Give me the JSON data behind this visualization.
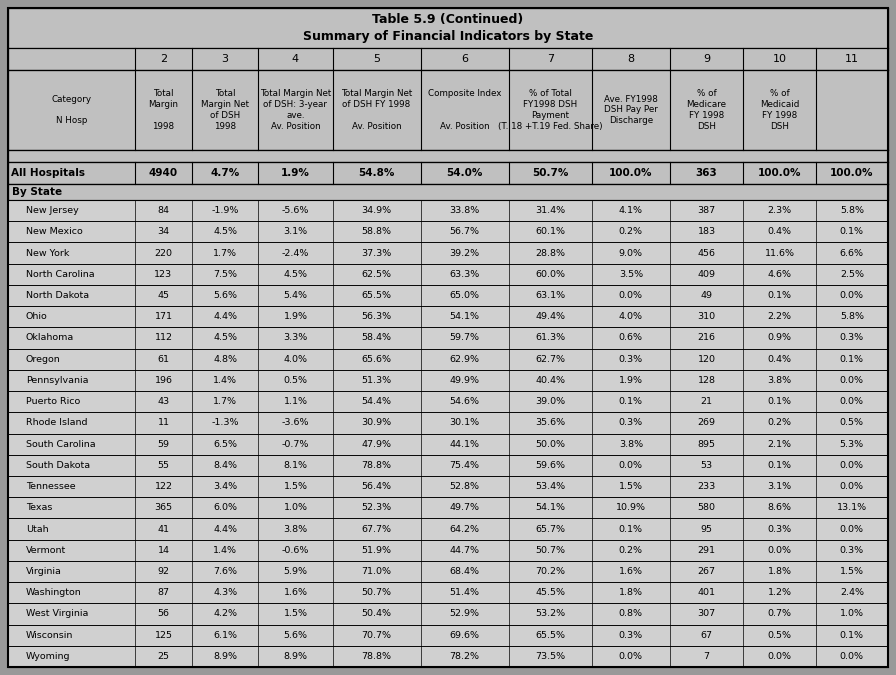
{
  "title_line1": "Table 5.9 (Continued)",
  "title_line2": "Summary of Financial Indicators by State",
  "bg_color": "#999999",
  "header_bg": "#c0c0c0",
  "cell_bg": "#d0d0d0",
  "summary_row": {
    "label": "All Hospitals",
    "values": [
      "4940",
      "4.7%",
      "1.9%",
      "54.8%",
      "54.0%",
      "50.7%",
      "100.0%",
      "363",
      "100.0%",
      "100.0%"
    ]
  },
  "state_rows": [
    {
      "state": "New Jersey",
      "values": [
        "84",
        "-1.9%",
        "-5.6%",
        "34.9%",
        "33.8%",
        "31.4%",
        "4.1%",
        "387",
        "2.3%",
        "5.8%"
      ]
    },
    {
      "state": "New Mexico",
      "values": [
        "34",
        "4.5%",
        "3.1%",
        "58.8%",
        "56.7%",
        "60.1%",
        "0.2%",
        "183",
        "0.4%",
        "0.1%"
      ]
    },
    {
      "state": "New York",
      "values": [
        "220",
        "1.7%",
        "-2.4%",
        "37.3%",
        "39.2%",
        "28.8%",
        "9.0%",
        "456",
        "11.6%",
        "6.6%"
      ]
    },
    {
      "state": "North Carolina",
      "values": [
        "123",
        "7.5%",
        "4.5%",
        "62.5%",
        "63.3%",
        "60.0%",
        "3.5%",
        "409",
        "4.6%",
        "2.5%"
      ]
    },
    {
      "state": "North Dakota",
      "values": [
        "45",
        "5.6%",
        "5.4%",
        "65.5%",
        "65.0%",
        "63.1%",
        "0.0%",
        "49",
        "0.1%",
        "0.0%"
      ]
    },
    {
      "state": "Ohio",
      "values": [
        "171",
        "4.4%",
        "1.9%",
        "56.3%",
        "54.1%",
        "49.4%",
        "4.0%",
        "310",
        "2.2%",
        "5.8%"
      ]
    },
    {
      "state": "Oklahoma",
      "values": [
        "112",
        "4.5%",
        "3.3%",
        "58.4%",
        "59.7%",
        "61.3%",
        "0.6%",
        "216",
        "0.9%",
        "0.3%"
      ]
    },
    {
      "state": "Oregon",
      "values": [
        "61",
        "4.8%",
        "4.0%",
        "65.6%",
        "62.9%",
        "62.7%",
        "0.3%",
        "120",
        "0.4%",
        "0.1%"
      ]
    },
    {
      "state": "Pennsylvania",
      "values": [
        "196",
        "1.4%",
        "0.5%",
        "51.3%",
        "49.9%",
        "40.4%",
        "1.9%",
        "128",
        "3.8%",
        "0.0%"
      ]
    },
    {
      "state": "Puerto Rico",
      "values": [
        "43",
        "1.7%",
        "1.1%",
        "54.4%",
        "54.6%",
        "39.0%",
        "0.1%",
        "21",
        "0.1%",
        "0.0%"
      ]
    },
    {
      "state": "Rhode Island",
      "values": [
        "11",
        "-1.3%",
        "-3.6%",
        "30.9%",
        "30.1%",
        "35.6%",
        "0.3%",
        "269",
        "0.2%",
        "0.5%"
      ]
    },
    {
      "state": "South Carolina",
      "values": [
        "59",
        "6.5%",
        "-0.7%",
        "47.9%",
        "44.1%",
        "50.0%",
        "3.8%",
        "895",
        "2.1%",
        "5.3%"
      ]
    },
    {
      "state": "South Dakota",
      "values": [
        "55",
        "8.4%",
        "8.1%",
        "78.8%",
        "75.4%",
        "59.6%",
        "0.0%",
        "53",
        "0.1%",
        "0.0%"
      ]
    },
    {
      "state": "Tennessee",
      "values": [
        "122",
        "3.4%",
        "1.5%",
        "56.4%",
        "52.8%",
        "53.4%",
        "1.5%",
        "233",
        "3.1%",
        "0.0%"
      ]
    },
    {
      "state": "Texas",
      "values": [
        "365",
        "6.0%",
        "1.0%",
        "52.3%",
        "49.7%",
        "54.1%",
        "10.9%",
        "580",
        "8.6%",
        "13.1%"
      ]
    },
    {
      "state": "Utah",
      "values": [
        "41",
        "4.4%",
        "3.8%",
        "67.7%",
        "64.2%",
        "65.7%",
        "0.1%",
        "95",
        "0.3%",
        "0.0%"
      ]
    },
    {
      "state": "Vermont",
      "values": [
        "14",
        "1.4%",
        "-0.6%",
        "51.9%",
        "44.7%",
        "50.7%",
        "0.2%",
        "291",
        "0.0%",
        "0.3%"
      ]
    },
    {
      "state": "Virginia",
      "values": [
        "92",
        "7.6%",
        "5.9%",
        "71.0%",
        "68.4%",
        "70.2%",
        "1.6%",
        "267",
        "1.8%",
        "1.5%"
      ]
    },
    {
      "state": "Washington",
      "values": [
        "87",
        "4.3%",
        "1.6%",
        "50.7%",
        "51.4%",
        "45.5%",
        "1.8%",
        "401",
        "1.2%",
        "2.4%"
      ]
    },
    {
      "state": "West Virginia",
      "values": [
        "56",
        "4.2%",
        "1.5%",
        "50.4%",
        "52.9%",
        "53.2%",
        "0.8%",
        "307",
        "0.7%",
        "1.0%"
      ]
    },
    {
      "state": "Wisconsin",
      "values": [
        "125",
        "6.1%",
        "5.6%",
        "70.7%",
        "69.6%",
        "65.5%",
        "0.3%",
        "67",
        "0.5%",
        "0.1%"
      ]
    },
    {
      "state": "Wyoming",
      "values": [
        "25",
        "8.9%",
        "8.9%",
        "78.8%",
        "78.2%",
        "73.5%",
        "0.0%",
        "7",
        "0.0%",
        "0.0%"
      ]
    }
  ]
}
